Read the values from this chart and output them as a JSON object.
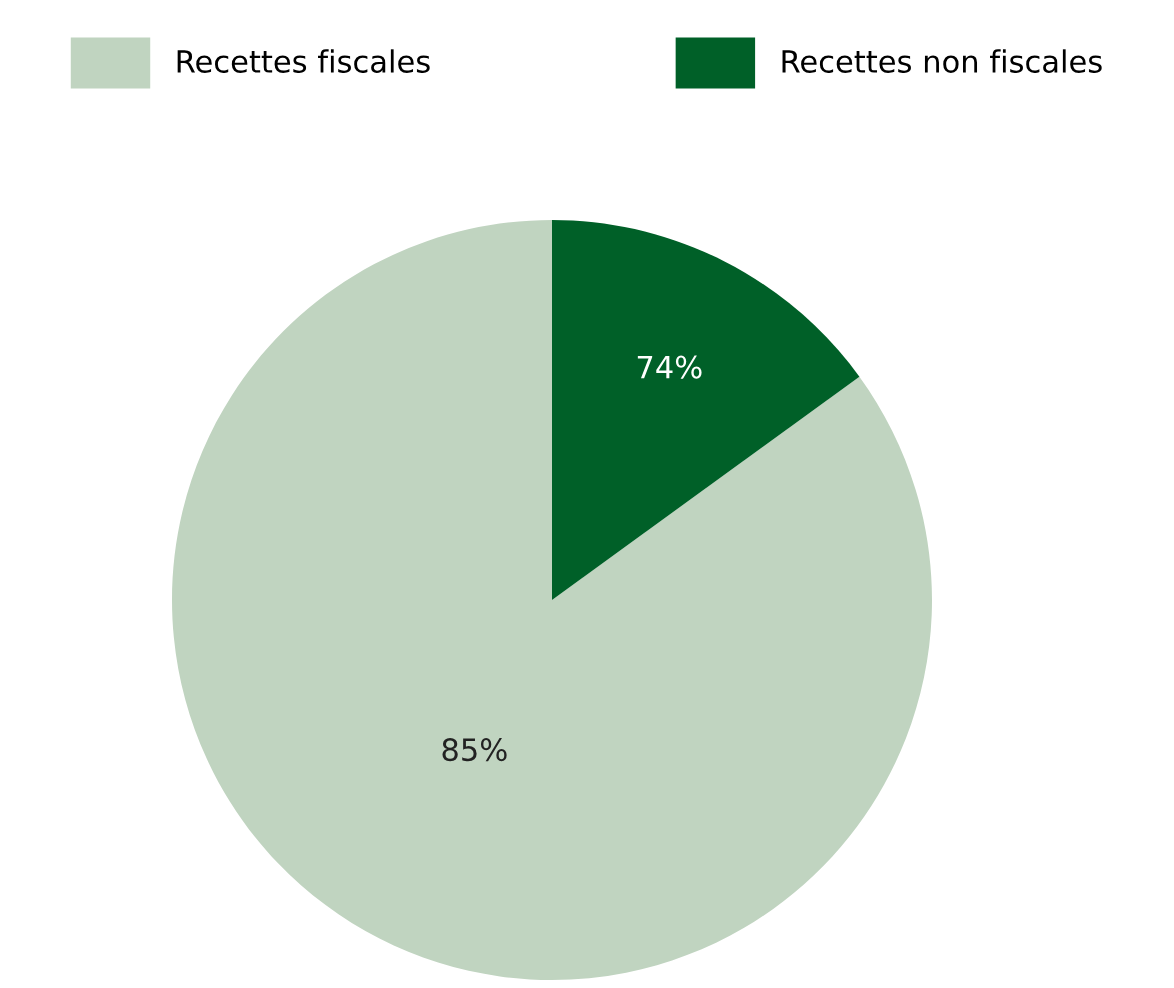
{
  "chart_data": {
    "type": "pie",
    "categories": [
      "Recettes fiscales",
      "Recettes non fiscales"
    ],
    "values": [
      85,
      15
    ],
    "colors": [
      "#c0d4c0",
      "#006028"
    ],
    "value_labels": [
      "85%",
      null
    ],
    "annotations": [
      "74%"
    ],
    "legend": "top"
  }
}
